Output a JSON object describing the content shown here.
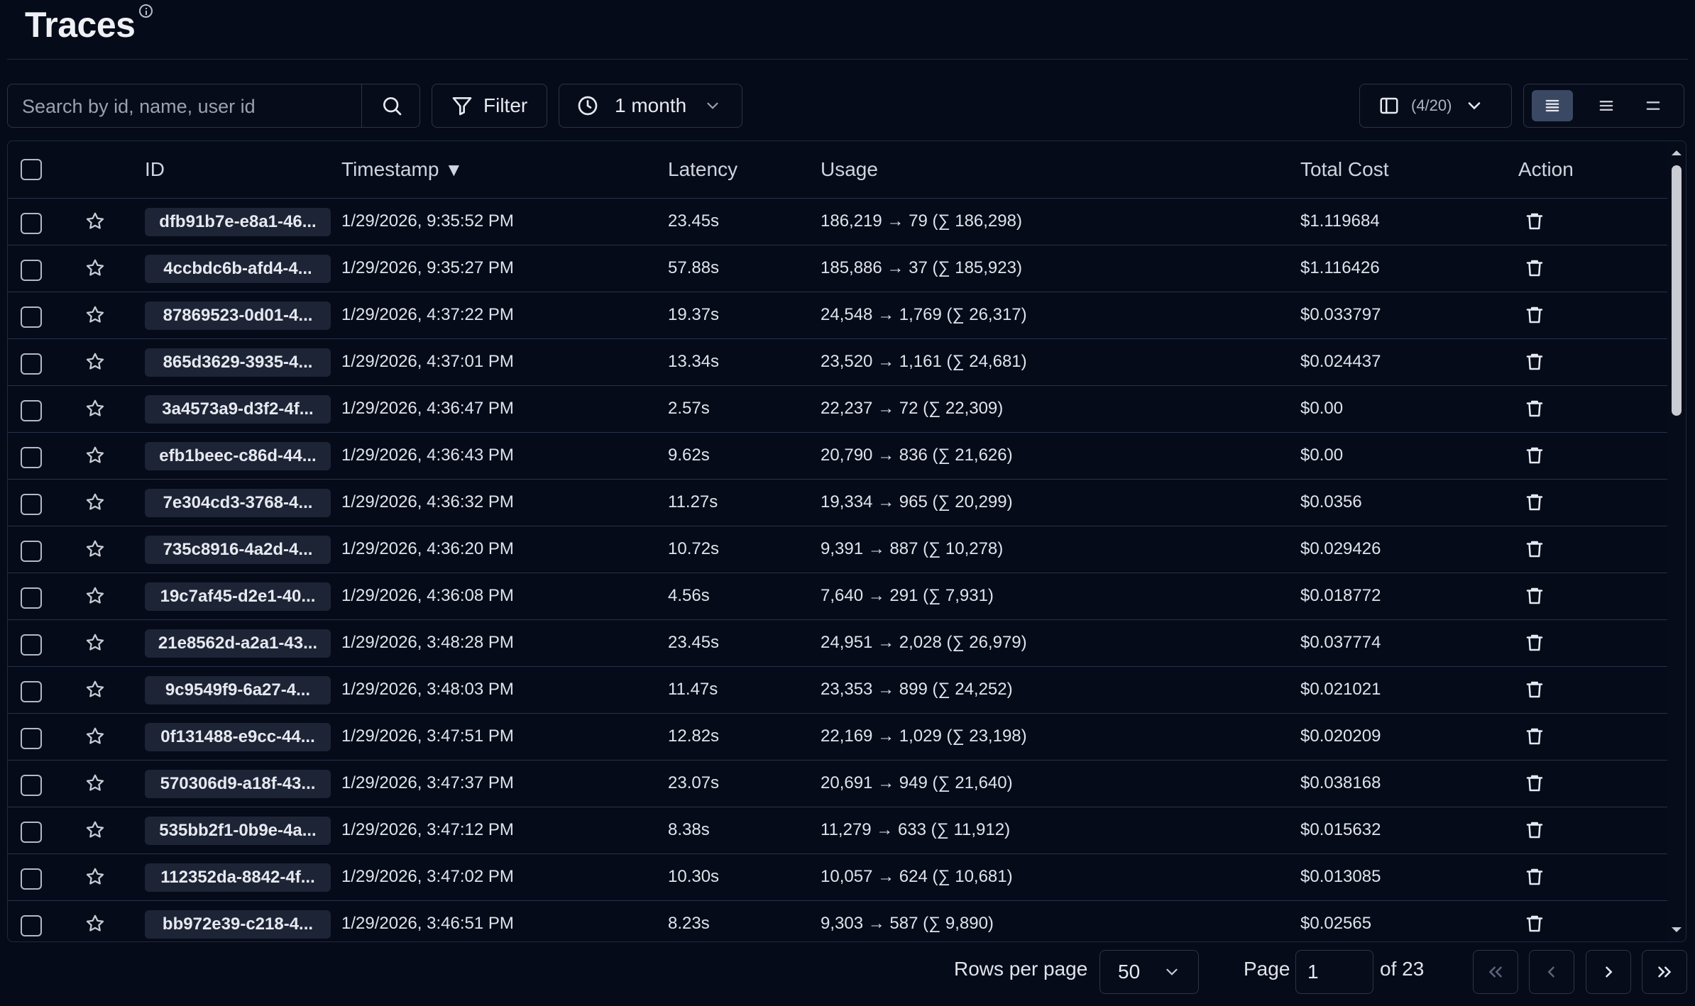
{
  "page": {
    "title": "Traces",
    "info_icon": "info-icon"
  },
  "toolbar": {
    "search_placeholder": "Search by id, name, user id",
    "filter_label": "Filter",
    "time_range": "1 month",
    "columns_label": "(4/20)"
  },
  "table": {
    "columns": [
      "ID",
      "Timestamp",
      "Latency",
      "Usage",
      "Total Cost",
      "Action"
    ],
    "sort_indicator": "▼",
    "rows": [
      {
        "id": "dfb91b7e-e8a1-46...",
        "timestamp": "1/29/2026, 9:35:52 PM",
        "latency": "23.45s",
        "usage": "186,219 → 79 (∑ 186,298)",
        "cost": "$1.119684"
      },
      {
        "id": "4ccbdc6b-afd4-4...",
        "timestamp": "1/29/2026, 9:35:27 PM",
        "latency": "57.88s",
        "usage": "185,886 → 37 (∑ 185,923)",
        "cost": "$1.116426"
      },
      {
        "id": "87869523-0d01-4...",
        "timestamp": "1/29/2026, 4:37:22 PM",
        "latency": "19.37s",
        "usage": "24,548 → 1,769 (∑ 26,317)",
        "cost": "$0.033797"
      },
      {
        "id": "865d3629-3935-4...",
        "timestamp": "1/29/2026, 4:37:01 PM",
        "latency": "13.34s",
        "usage": "23,520 → 1,161 (∑ 24,681)",
        "cost": "$0.024437"
      },
      {
        "id": "3a4573a9-d3f2-4f...",
        "timestamp": "1/29/2026, 4:36:47 PM",
        "latency": "2.57s",
        "usage": "22,237 → 72 (∑ 22,309)",
        "cost": "$0.00"
      },
      {
        "id": "efb1beec-c86d-44...",
        "timestamp": "1/29/2026, 4:36:43 PM",
        "latency": "9.62s",
        "usage": "20,790 → 836 (∑ 21,626)",
        "cost": "$0.00"
      },
      {
        "id": "7e304cd3-3768-4...",
        "timestamp": "1/29/2026, 4:36:32 PM",
        "latency": "11.27s",
        "usage": "19,334 → 965 (∑ 20,299)",
        "cost": "$0.0356"
      },
      {
        "id": "735c8916-4a2d-4...",
        "timestamp": "1/29/2026, 4:36:20 PM",
        "latency": "10.72s",
        "usage": "9,391 → 887 (∑ 10,278)",
        "cost": "$0.029426"
      },
      {
        "id": "19c7af45-d2e1-40...",
        "timestamp": "1/29/2026, 4:36:08 PM",
        "latency": "4.56s",
        "usage": "7,640 → 291 (∑ 7,931)",
        "cost": "$0.018772"
      },
      {
        "id": "21e8562d-a2a1-43...",
        "timestamp": "1/29/2026, 3:48:28 PM",
        "latency": "23.45s",
        "usage": "24,951 → 2,028 (∑ 26,979)",
        "cost": "$0.037774"
      },
      {
        "id": "9c9549f9-6a27-4...",
        "timestamp": "1/29/2026, 3:48:03 PM",
        "latency": "11.47s",
        "usage": "23,353 → 899 (∑ 24,252)",
        "cost": "$0.021021"
      },
      {
        "id": "0f131488-e9cc-44...",
        "timestamp": "1/29/2026, 3:47:51 PM",
        "latency": "12.82s",
        "usage": "22,169 → 1,029 (∑ 23,198)",
        "cost": "$0.020209"
      },
      {
        "id": "570306d9-a18f-43...",
        "timestamp": "1/29/2026, 3:47:37 PM",
        "latency": "23.07s",
        "usage": "20,691 → 949 (∑ 21,640)",
        "cost": "$0.038168"
      },
      {
        "id": "535bb2f1-0b9e-4a...",
        "timestamp": "1/29/2026, 3:47:12 PM",
        "latency": "8.38s",
        "usage": "11,279 → 633 (∑ 11,912)",
        "cost": "$0.015632"
      },
      {
        "id": "112352da-8842-4f...",
        "timestamp": "1/29/2026, 3:47:02 PM",
        "latency": "10.30s",
        "usage": "10,057 → 624 (∑ 10,681)",
        "cost": "$0.013085"
      },
      {
        "id": "bb972e39-c218-4...",
        "timestamp": "1/29/2026, 3:46:51 PM",
        "latency": "8.23s",
        "usage": "9,303 → 587 (∑ 9,890)",
        "cost": "$0.02565"
      }
    ]
  },
  "pagination": {
    "rows_per_page_label": "Rows per page",
    "rows_per_page": "50",
    "page_label": "Page",
    "current_page": "1",
    "of_label": "of 23"
  },
  "colors": {
    "background": "#060b19",
    "border": "#26324a",
    "pill": "#1d2435",
    "active_toggle": "#3b4863"
  }
}
